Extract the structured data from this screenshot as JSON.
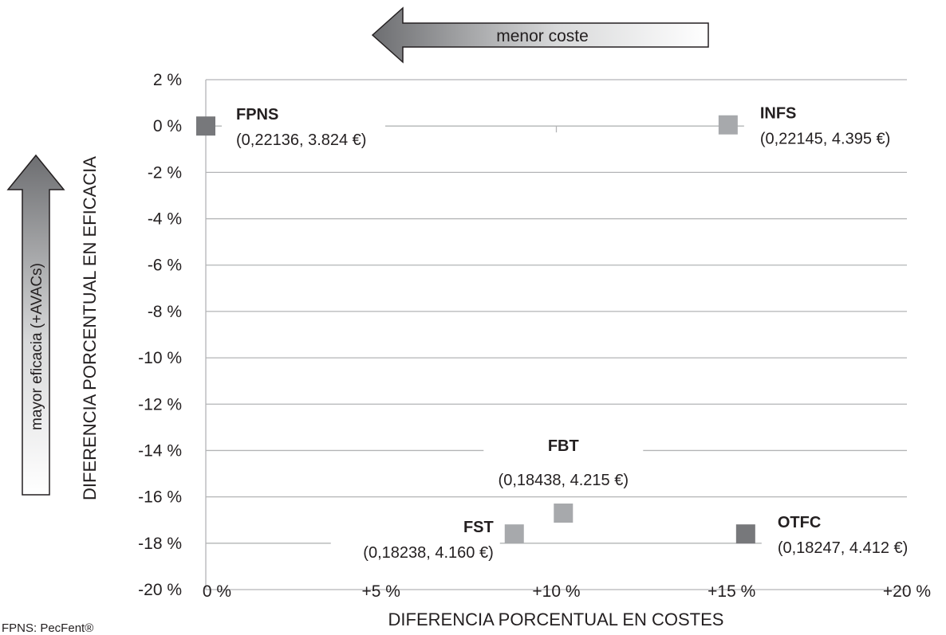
{
  "chart_data": {
    "type": "scatter",
    "xlabel": "DIFERENCIA PORCENTUAL EN COSTES",
    "ylabel": "DIFERENCIA PORCENTUAL EN EFICACIA",
    "xlim": [
      0,
      20
    ],
    "ylim": [
      -20,
      2
    ],
    "x_ticks": [
      0,
      5,
      10,
      15,
      20
    ],
    "x_tick_labels": [
      "0 %",
      "+5 %",
      "+10 %",
      "+15 %",
      "+20 %"
    ],
    "y_ticks": [
      2,
      0,
      -2,
      -4,
      -6,
      -8,
      -10,
      -12,
      -14,
      -16,
      -18,
      -20
    ],
    "y_tick_labels": [
      "2 %",
      "0 %",
      "-2 %",
      "-4 %",
      "-6 %",
      "-8 %",
      "-10 %",
      "-12 %",
      "-14 %",
      "-16 %",
      "-18 %",
      "-20 %"
    ],
    "grid": "horizontal",
    "points": [
      {
        "name": "FPNS",
        "detail": "(0,22136, 3.824 €)",
        "x": 0.0,
        "y": 0.0,
        "color": "#77787b"
      },
      {
        "name": "INFS",
        "detail": "(0,22145, 4.395 €)",
        "x": 14.9,
        "y": 0.05,
        "color": "#a7a9ac"
      },
      {
        "name": "FBT",
        "detail": "(0,18438, 4.215 €)",
        "x": 10.2,
        "y": -16.7,
        "color": "#a7a9ac"
      },
      {
        "name": "FST",
        "detail": "(0,18238, 4.160 €)",
        "x": 8.8,
        "y": -17.6,
        "color": "#a7a9ac"
      },
      {
        "name": "OTFC",
        "detail": "(0,18247, 4.412 €)",
        "x": 15.4,
        "y": -17.6,
        "color": "#77787b"
      }
    ],
    "annotations": {
      "cost_arrow": "menor coste",
      "efficacy_arrow": "mayor eficacia (+AVACs)"
    }
  },
  "footnote": "FPNS: PecFent®"
}
